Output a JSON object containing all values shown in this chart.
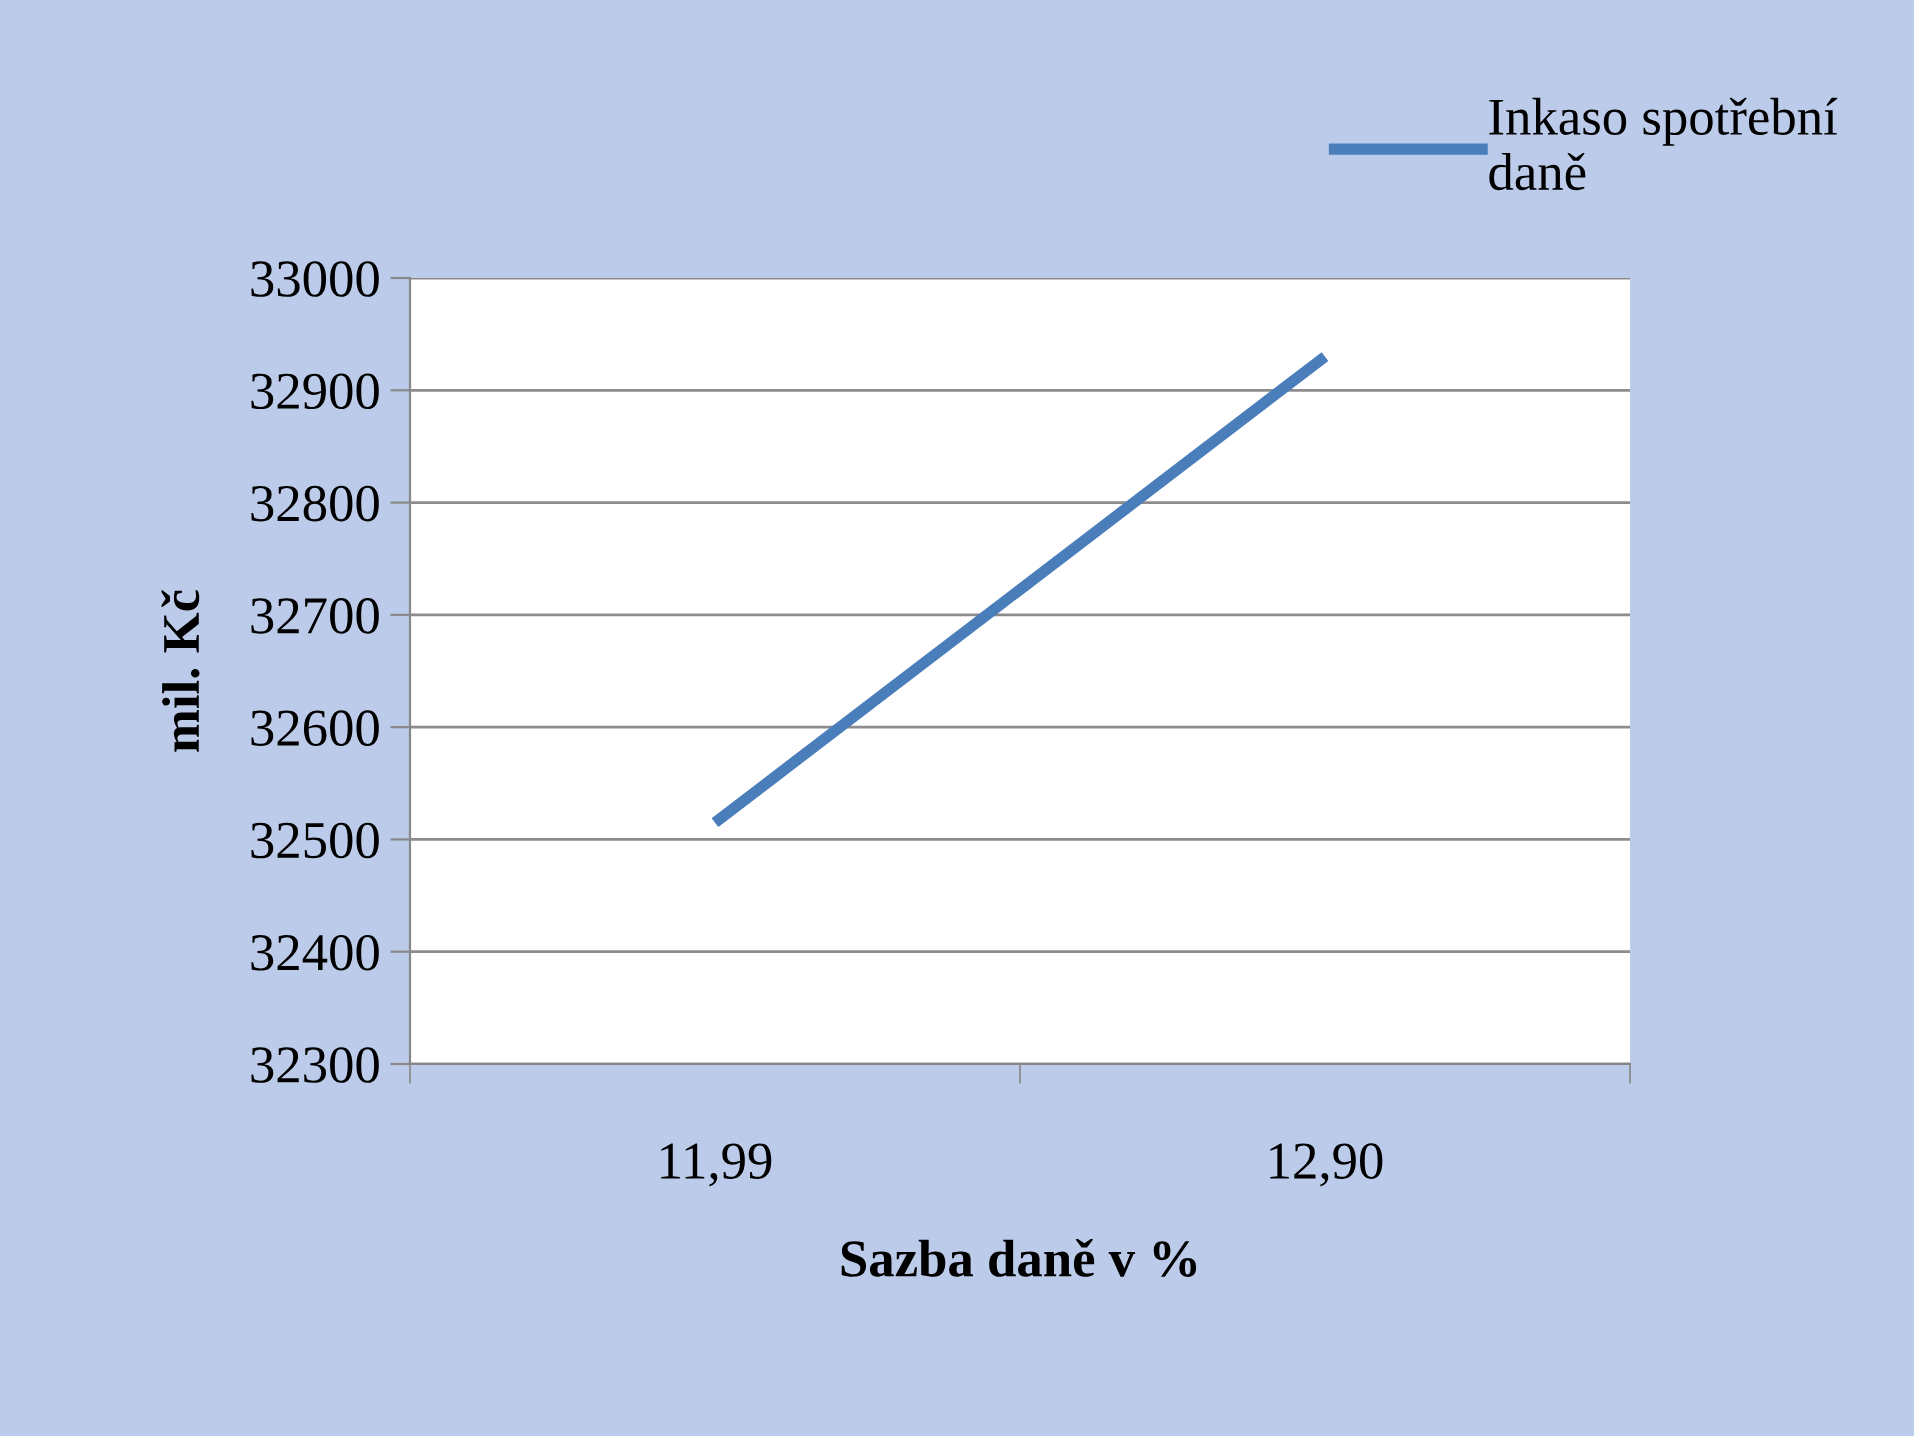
{
  "chart_data": {
    "type": "line",
    "xlabel": "Sazba daně v %",
    "ylabel": "mil. Kč",
    "categories": [
      "11,99",
      "12,90"
    ],
    "series": [
      {
        "name": "Inkaso spotřební daně",
        "color": "#4a7ebb",
        "values": [
          32515,
          32930
        ]
      }
    ],
    "ylim": [
      32300,
      33000
    ],
    "yticks": [
      32300,
      32400,
      32500,
      32600,
      32700,
      32800,
      32900,
      33000
    ],
    "grid": "y",
    "legend": "top right",
    "marker": "none",
    "line_style": "solid"
  }
}
